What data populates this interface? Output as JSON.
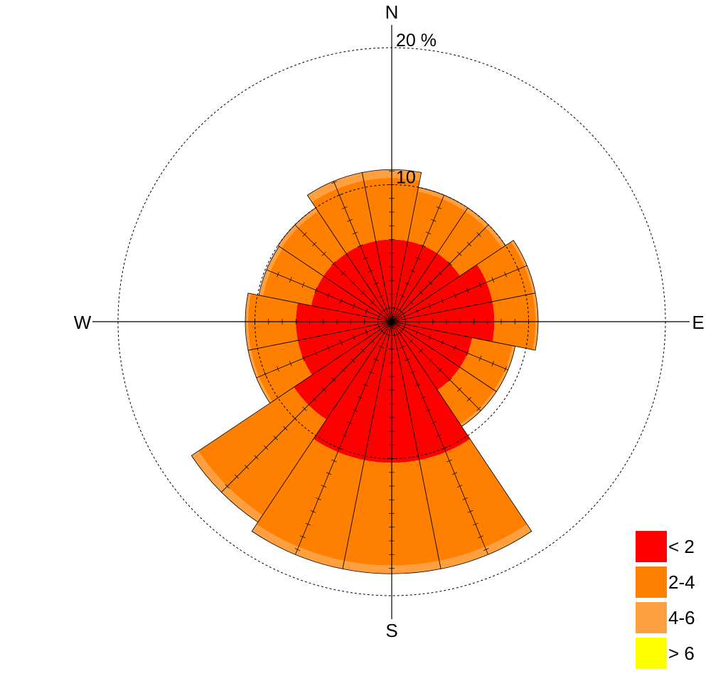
{
  "chart_data": {
    "type": "windrose",
    "directions": [
      "N",
      "NNE",
      "NE",
      "ENE",
      "E",
      "ESE",
      "SE",
      "SSE",
      "S",
      "SSW",
      "SW",
      "WSW",
      "W",
      "WNW",
      "NW",
      "NNW"
    ],
    "compass_labels": [
      "N",
      "E",
      "S",
      "W"
    ],
    "radial_unit_label": "20 %",
    "radial_ticks": [
      {
        "value": 10,
        "label": "10"
      },
      {
        "value": 20,
        "label": "20 %"
      }
    ],
    "rmax": 20,
    "bins": [
      {
        "label": "< 2",
        "color": "#ff0000",
        "values": [
          6.0,
          6.0,
          6.0,
          7.5,
          7.5,
          6.0,
          6.0,
          10.3,
          10.3,
          10.3,
          8.6,
          7.0,
          7.0,
          6.0,
          6.0,
          6.0
        ]
      },
      {
        "label": "2-4",
        "color": "#ff8000",
        "values": [
          4.5,
          3.7,
          3.7,
          3.0,
          3.0,
          3.0,
          3.0,
          7.5,
          7.5,
          7.5,
          8.4,
          3.5,
          3.5,
          3.6,
          3.7,
          4.5
        ]
      },
      {
        "label": "4-6",
        "color": "#ffa040",
        "values": [
          0.6,
          0.3,
          0.3,
          0.2,
          0.2,
          0.2,
          0.2,
          0.6,
          0.6,
          0.6,
          0.6,
          0.2,
          0.2,
          0.3,
          0.3,
          0.6
        ]
      },
      {
        "label": "> 6",
        "color": "#ffff00",
        "values": [
          0,
          0,
          0,
          0,
          0,
          0,
          0,
          0,
          0,
          0,
          0,
          0,
          0,
          0,
          0,
          0
        ]
      }
    ],
    "grid": "dashed-circles",
    "legend_position": "bottom-right"
  }
}
